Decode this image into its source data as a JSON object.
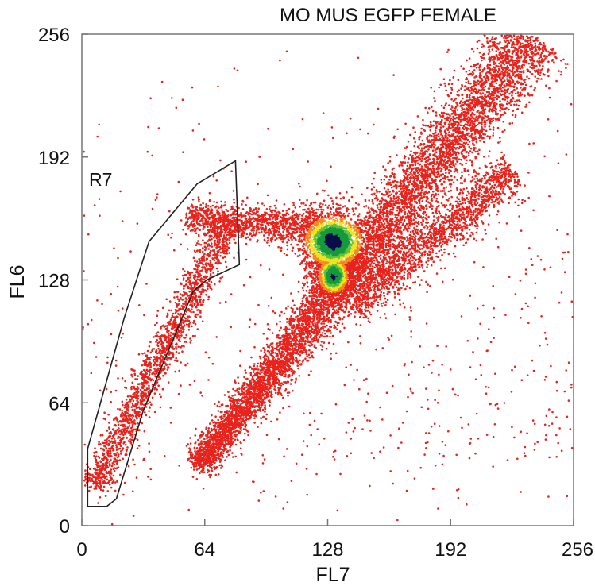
{
  "chart_data": {
    "type": "scatter",
    "title": "MO MUS EGFP FEMALE",
    "xlabel": "FL7",
    "ylabel": "FL6",
    "xlim": [
      0,
      256
    ],
    "ylim": [
      0,
      256
    ],
    "x_ticks": [
      "0",
      "64",
      "128",
      "192",
      "256"
    ],
    "y_ticks": [
      "0",
      "64",
      "128",
      "192",
      "256"
    ],
    "grid": false,
    "legend": "none",
    "density_colors": {
      "low": "#e8231c",
      "mid_low": "#f08a1f",
      "mid": "#f3e21c",
      "mid_high": "#5cc23a",
      "high": "#16993e",
      "peak": "#0b0c4a"
    },
    "populations": [
      {
        "description_for_render": "diagonal main population",
        "from": [
          60,
          30
        ],
        "to": [
          235,
          255
        ]
      },
      {
        "description_for_render": "gated lower-left branch",
        "from": [
          6,
          20
        ],
        "to": [
          78,
          160
        ]
      },
      {
        "description_for_render": "upper-left arm",
        "from": [
          55,
          160
        ],
        "to": [
          125,
          155
        ]
      },
      {
        "description_for_render": "lower-right branch",
        "from": [
          140,
          115
        ],
        "to": [
          225,
          185
        ]
      },
      {
        "description_for_render": "dense core",
        "center": [
          131,
          146
        ]
      }
    ],
    "gate": {
      "label": "R7",
      "vertices": [
        [
          3,
          10
        ],
        [
          3,
          40
        ],
        [
          22,
          108
        ],
        [
          35,
          148
        ],
        [
          60,
          178
        ],
        [
          80,
          190
        ],
        [
          82,
          136
        ],
        [
          65,
          128
        ],
        [
          58,
          122
        ],
        [
          32,
          60
        ],
        [
          18,
          14
        ],
        [
          13,
          10
        ]
      ]
    }
  }
}
